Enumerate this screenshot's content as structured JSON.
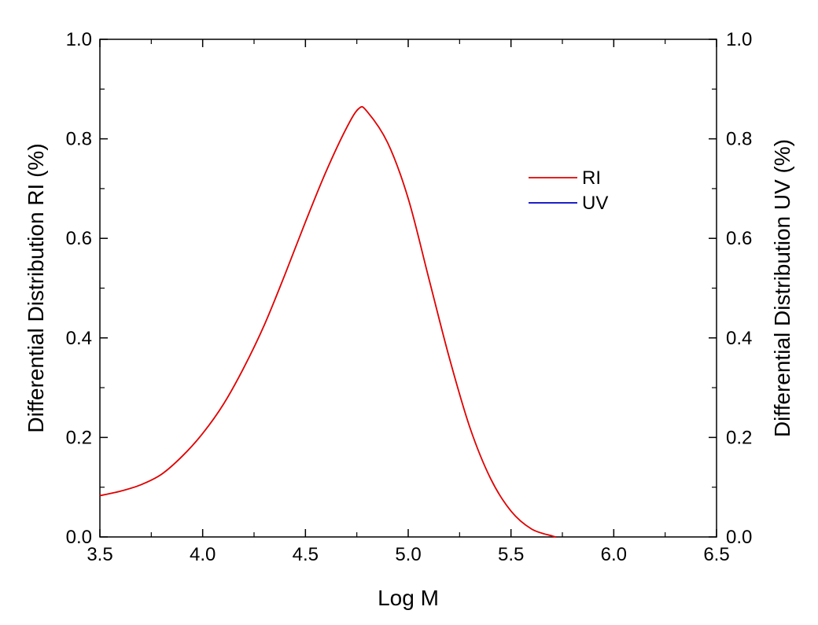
{
  "chart_data": {
    "type": "line",
    "title": "",
    "xlabel": "Log M",
    "ylabel_left": "Differential Distribution RI (%)",
    "ylabel_right": "Differential Distribution UV (%)",
    "xlim": [
      3.5,
      6.5
    ],
    "ylim": [
      0.0,
      1.0
    ],
    "xticks": [
      "3.5",
      "4.0",
      "4.5",
      "5.0",
      "5.5",
      "6.0",
      "6.5"
    ],
    "yticks": [
      "0.0",
      "0.2",
      "0.4",
      "0.6",
      "0.8",
      "1.0"
    ],
    "grid": false,
    "legend_position": "top-right",
    "legend": [
      {
        "label": "RI",
        "color": "#e00000"
      },
      {
        "label": "UV",
        "color": "#0000c0"
      }
    ],
    "series": [
      {
        "name": "RI",
        "color": "#e00000",
        "axis": "left",
        "x": [
          3.5,
          3.6,
          3.7,
          3.8,
          3.9,
          4.0,
          4.1,
          4.2,
          4.3,
          4.4,
          4.5,
          4.6,
          4.7,
          4.76,
          4.8,
          4.9,
          5.0,
          5.1,
          5.2,
          5.3,
          5.4,
          5.5,
          5.6,
          5.7,
          5.72
        ],
        "values": [
          0.083,
          0.092,
          0.105,
          0.126,
          0.162,
          0.208,
          0.266,
          0.34,
          0.426,
          0.527,
          0.633,
          0.734,
          0.822,
          0.861,
          0.855,
          0.792,
          0.68,
          0.52,
          0.36,
          0.22,
          0.118,
          0.052,
          0.016,
          0.002,
          0.0
        ]
      },
      {
        "name": "UV",
        "color": "#0000c0",
        "axis": "right",
        "x": [],
        "values": []
      }
    ]
  }
}
